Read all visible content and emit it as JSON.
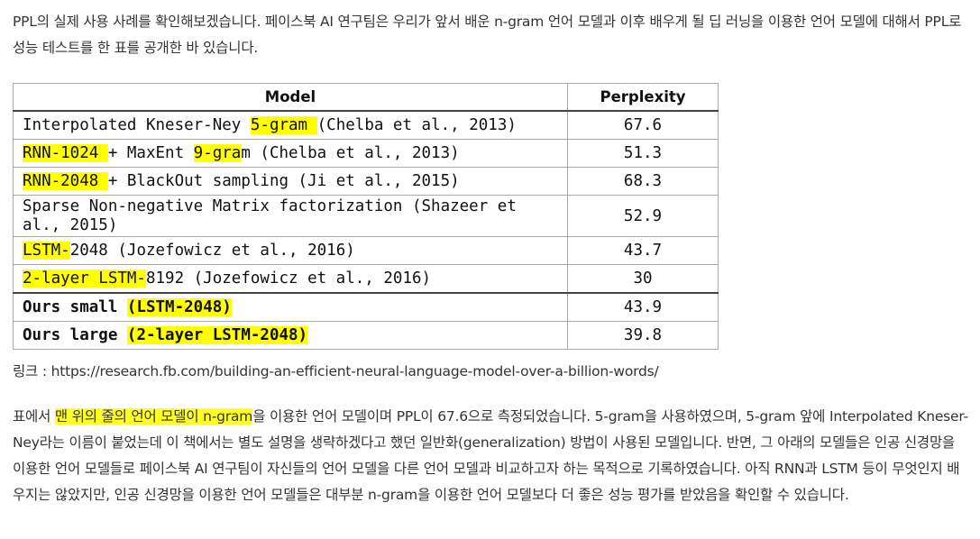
{
  "intro": "PPL의 실제 사용 사례를 확인해보겠습니다. 페이스북 AI 연구팀은 우리가 앞서 배운 n-gram 언어 모델과 이후 배우게 될 딥 러닝을 이용한 언어 모델에 대해서 PPL로 성능 테스트를 한 표를 공개한 바 있습니다.",
  "table": {
    "headers": {
      "model": "Model",
      "perplexity": "Perplexity"
    },
    "rows": [
      {
        "pre": "Interpolated Kneser-Ney ",
        "hl": "5-gram ",
        "post": "(Chelba et al., 2013)",
        "value": "67.6"
      },
      {
        "pre": "",
        "hl": "RNN-1024 ",
        "mid": "+ MaxEnt ",
        "hl2": "9-gra",
        "post": "m (Chelba et al., 2013)",
        "value": "51.3"
      },
      {
        "pre": "",
        "hl": "RNN-2048 ",
        "post": "+ BlackOut sampling (Ji et al., 2015)",
        "value": "68.3"
      },
      {
        "pre": "Sparse Non-negative Matrix factorization (Shazeer et al., 2015)",
        "value": "52.9"
      },
      {
        "pre": "",
        "hl": "LSTM-",
        "post": "2048 (Jozefowicz et al., 2016)",
        "value": "43.7"
      },
      {
        "pre": "",
        "hl": "2-layer LSTM-",
        "post": "8192 (Jozefowicz et al., 2016)",
        "value": "30"
      },
      {
        "pre": "Ours small ",
        "hl": "(LSTM-2048)",
        "post": "",
        "value": "43.9"
      },
      {
        "pre": "Ours large ",
        "hl": "(2-layer LSTM-2048)",
        "post": "",
        "value": "39.8"
      }
    ]
  },
  "link_text": "링크 : https://research.fb.com/building-an-efficient-neural-language-model-over-a-billion-words/",
  "body": {
    "start": "표에서 ",
    "highlight": "맨 위의 줄의 언어 모델이 n-gram",
    "rest": "을 이용한 언어 모델이며 PPL이 67.6으로 측정되었습니다. 5-gram을 사용하였으며, 5-gram 앞에 Interpolated Kneser-Ney라는 이름이 붙었는데 이 책에서는 별도 설명을 생략하겠다고 했던 일반화(generalization) 방법이 사용된 모델입니다. 반면, 그 아래의 모델들은 인공 신경망을 이용한 언어 모델들로 페이스북 AI 연구팀이 자신들의 언어 모델을 다른 언어 모델과 비교하고자 하는 목적으로 기록하였습니다. 아직 RNN과 LSTM 등이 무엇인지 배우지는 않았지만, 인공 신경망을 이용한 언어 모델들은 대부분 n-gram을 이용한 언어 모델보다 더 좋은 성능 평가를 받았음을 확인할 수 있습니다."
  }
}
